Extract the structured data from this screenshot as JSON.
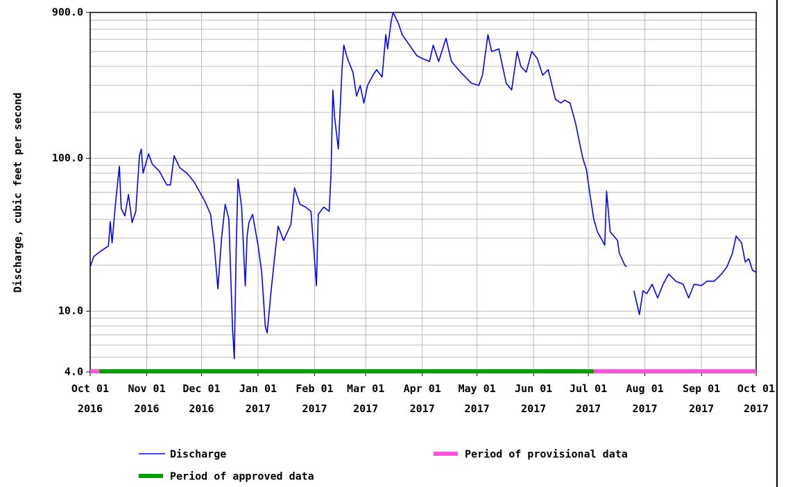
{
  "chart_data": {
    "type": "line",
    "ylabel": "Discharge, cubic feet per second",
    "log_y": true,
    "grid": true,
    "ylim": [
      4,
      900
    ],
    "yticks": [
      {
        "value": 4,
        "label": "4.0"
      },
      {
        "value": 10,
        "label": "10.0"
      },
      {
        "value": 100,
        "label": "100.0"
      },
      {
        "value": 900,
        "label": "900.0"
      }
    ],
    "yminor": [
      5,
      6,
      7,
      8,
      9,
      20,
      30,
      40,
      50,
      60,
      70,
      80,
      90,
      200,
      300,
      400,
      500,
      600,
      700,
      800
    ],
    "xlim": [
      "2016-10-01",
      "2017-10-01"
    ],
    "xticks": [
      {
        "value": "2016-10-01",
        "label": [
          "Oct 01",
          "2016"
        ]
      },
      {
        "value": "2016-11-01",
        "label": [
          "Nov 01",
          "2016"
        ]
      },
      {
        "value": "2016-12-01",
        "label": [
          "Dec 01",
          "2016"
        ]
      },
      {
        "value": "2017-01-01",
        "label": [
          "Jan 01",
          "2017"
        ]
      },
      {
        "value": "2017-02-01",
        "label": [
          "Feb 01",
          "2017"
        ]
      },
      {
        "value": "2017-03-01",
        "label": [
          "Mar 01",
          "2017"
        ]
      },
      {
        "value": "2017-04-01",
        "label": [
          "Apr 01",
          "2017"
        ]
      },
      {
        "value": "2017-05-01",
        "label": [
          "May 01",
          "2017"
        ]
      },
      {
        "value": "2017-06-01",
        "label": [
          "Jun 01",
          "2017"
        ]
      },
      {
        "value": "2017-07-01",
        "label": [
          "Jul 01",
          "2017"
        ]
      },
      {
        "value": "2017-08-01",
        "label": [
          "Aug 01",
          "2017"
        ]
      },
      {
        "value": "2017-09-01",
        "label": [
          "Sep 01",
          "2017"
        ]
      },
      {
        "value": "2017-10-01",
        "label": [
          "Oct 01",
          "2017"
        ]
      }
    ],
    "x": [
      "2016-10-01",
      "2016-10-03",
      "2016-10-07",
      "2016-10-11",
      "2016-10-12",
      "2016-10-13",
      "2016-10-15",
      "2016-10-17",
      "2016-10-18",
      "2016-10-20",
      "2016-10-22",
      "2016-10-24",
      "2016-10-26",
      "2016-10-28",
      "2016-10-29",
      "2016-10-30",
      "2016-11-02",
      "2016-11-04",
      "2016-11-08",
      "2016-11-12",
      "2016-11-14",
      "2016-11-16",
      "2016-11-19",
      "2016-11-23",
      "2016-11-27",
      "2016-12-03",
      "2016-12-06",
      "2016-12-08",
      "2016-12-10",
      "2016-12-12",
      "2016-12-14",
      "2016-12-16",
      "2016-12-18",
      "2016-12-19",
      "2016-12-20",
      "2016-12-21",
      "2016-12-23",
      "2016-12-25",
      "2016-12-26",
      "2016-12-27",
      "2016-12-29",
      "2017-01-01",
      "2017-01-03",
      "2017-01-05",
      "2017-01-06",
      "2017-01-08",
      "2017-01-10",
      "2017-01-12",
      "2017-01-15",
      "2017-01-19",
      "2017-01-21",
      "2017-01-24",
      "2017-01-27",
      "2017-01-30",
      "2017-02-02",
      "2017-02-03",
      "2017-02-06",
      "2017-02-09",
      "2017-02-10",
      "2017-02-11",
      "2017-02-12",
      "2017-02-14",
      "2017-02-16",
      "2017-02-17",
      "2017-02-19",
      "2017-02-22",
      "2017-02-24",
      "2017-02-26",
      "2017-02-28",
      "2017-03-02",
      "2017-03-05",
      "2017-03-07",
      "2017-03-10",
      "2017-03-12",
      "2017-03-13",
      "2017-03-15",
      "2017-03-16",
      "2017-03-19",
      "2017-03-21",
      "2017-03-25",
      "2017-03-29",
      "2017-04-01",
      "2017-04-05",
      "2017-04-07",
      "2017-04-10",
      "2017-04-14",
      "2017-04-17",
      "2017-04-22",
      "2017-04-28",
      "2017-05-02",
      "2017-05-04",
      "2017-05-07",
      "2017-05-09",
      "2017-05-13",
      "2017-05-17",
      "2017-05-20",
      "2017-05-23",
      "2017-05-25",
      "2017-05-28",
      "2017-05-31",
      "2017-06-03",
      "2017-06-06",
      "2017-06-09",
      "2017-06-13",
      "2017-06-16",
      "2017-06-18",
      "2017-06-21",
      "2017-06-24",
      "2017-06-28",
      "2017-06-30",
      "2017-07-02",
      "2017-07-04",
      "2017-07-06",
      "2017-07-08",
      "2017-07-10",
      "2017-07-11",
      "2017-07-13",
      "2017-07-15",
      "2017-07-17",
      "2017-07-18",
      "2017-07-21",
      "2017-07-22",
      "2017-07-23",
      "2017-07-26",
      "2017-07-29",
      "2017-07-31",
      "2017-08-02",
      "2017-08-05",
      "2017-08-08",
      "2017-08-11",
      "2017-08-14",
      "2017-08-18",
      "2017-08-22",
      "2017-08-25",
      "2017-08-28",
      "2017-09-01",
      "2017-09-04",
      "2017-09-08",
      "2017-09-12",
      "2017-09-15",
      "2017-09-18",
      "2017-09-20",
      "2017-09-23",
      "2017-09-25",
      "2017-09-27",
      "2017-09-29",
      "2017-10-01"
    ],
    "series": [
      {
        "name": "Discharge",
        "color": "#0000ff",
        "values": [
          19.5,
          22.8,
          24.8,
          26.7,
          38.5,
          28,
          52.6,
          88.7,
          47,
          42,
          58,
          38,
          45,
          104,
          115,
          80,
          107,
          92,
          82,
          67,
          67,
          104,
          87,
          80,
          70,
          52,
          43,
          27,
          14,
          30,
          50,
          40,
          7.8,
          4.9,
          25,
          73,
          48,
          14.6,
          31,
          38,
          43,
          27,
          18,
          7.9,
          7.2,
          13,
          22,
          36,
          29,
          37,
          64,
          50,
          48,
          45,
          14.7,
          43,
          48,
          45,
          80,
          279,
          184,
          115,
          382,
          550,
          450,
          366,
          255,
          300,
          230,
          300,
          350,
          380,
          340,
          644,
          520,
          793,
          900,
          760,
          644,
          550,
          470,
          450,
          430,
          550,
          430,
          610,
          430,
          366,
          310,
          300,
          350,
          644,
          500,
          520,
          310,
          280,
          500,
          400,
          366,
          500,
          450,
          350,
          380,
          243,
          230,
          240,
          230,
          170,
          100,
          84,
          57,
          40,
          33,
          30,
          27,
          61,
          33,
          31,
          29,
          24,
          20,
          19.5,
          null,
          13.6,
          9.5,
          13.6,
          13,
          15,
          12.2,
          15,
          17.5,
          15.7,
          15,
          12.2,
          15,
          14.7,
          15.7,
          15.7,
          17.5,
          19.5,
          24,
          31,
          28,
          21,
          22,
          18.5,
          18
        ]
      }
    ],
    "periods": [
      {
        "name": "Period of provisional data",
        "color": "#ff55dd",
        "start": "2016-10-01",
        "end": "2016-10-06"
      },
      {
        "name": "Period of approved data",
        "color": "#00a000",
        "start": "2016-10-06",
        "end": "2017-07-04"
      },
      {
        "name": "Period of provisional data",
        "color": "#ff55dd",
        "start": "2017-07-04",
        "end": "2017-10-01"
      }
    ]
  }
}
